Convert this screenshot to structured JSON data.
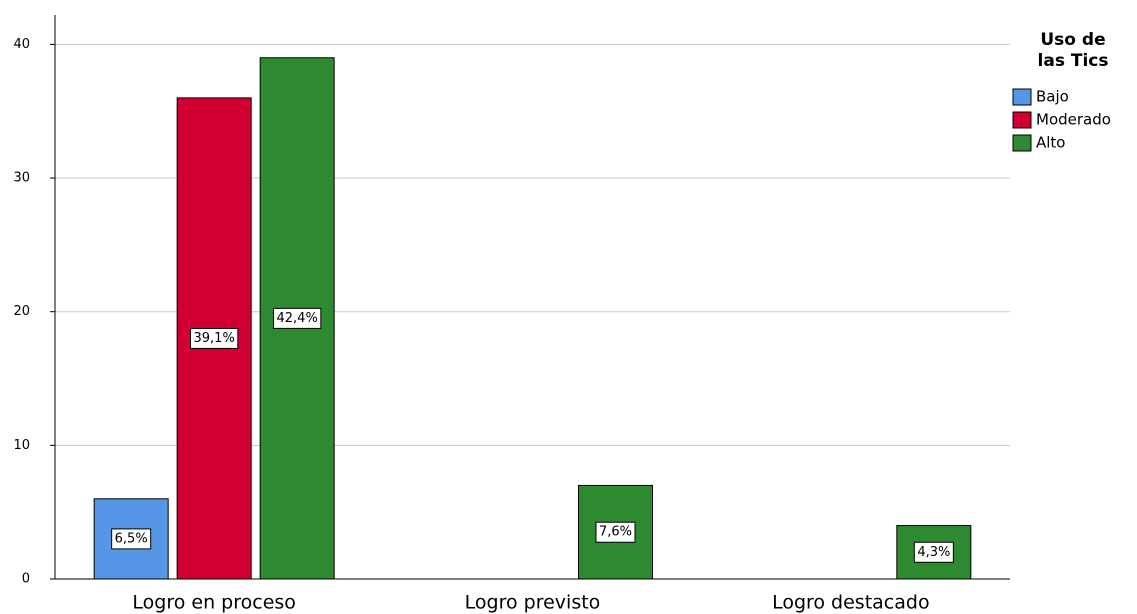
{
  "chart_data": {
    "type": "bar",
    "categories": [
      "Logro en proceso",
      "Logro previsto",
      "Logro destacado"
    ],
    "series": [
      {
        "name": "Bajo",
        "color": "#5596e6",
        "values": [
          6,
          null,
          null
        ],
        "percentages": [
          6.5,
          null,
          null
        ],
        "percentage_labels": [
          "6,5%",
          null,
          null
        ]
      },
      {
        "name": "Moderado",
        "color": "#d20032",
        "values": [
          36,
          null,
          null
        ],
        "percentages": [
          39.1,
          null,
          null
        ],
        "percentage_labels": [
          "39,1%",
          null,
          null
        ]
      },
      {
        "name": "Alto",
        "color": "#2e8a30",
        "values": [
          39,
          7,
          4
        ],
        "percentages": [
          42.4,
          7.6,
          4.3
        ],
        "percentage_labels": [
          "42,4%",
          "7,6%",
          "4,3%"
        ]
      }
    ],
    "legend_title": [
      "Uso de",
      "las Tics"
    ],
    "legend": "right",
    "ylim": [
      0,
      42.2
    ],
    "yticks": [
      0,
      10,
      20,
      30,
      40
    ],
    "grid": true
  }
}
